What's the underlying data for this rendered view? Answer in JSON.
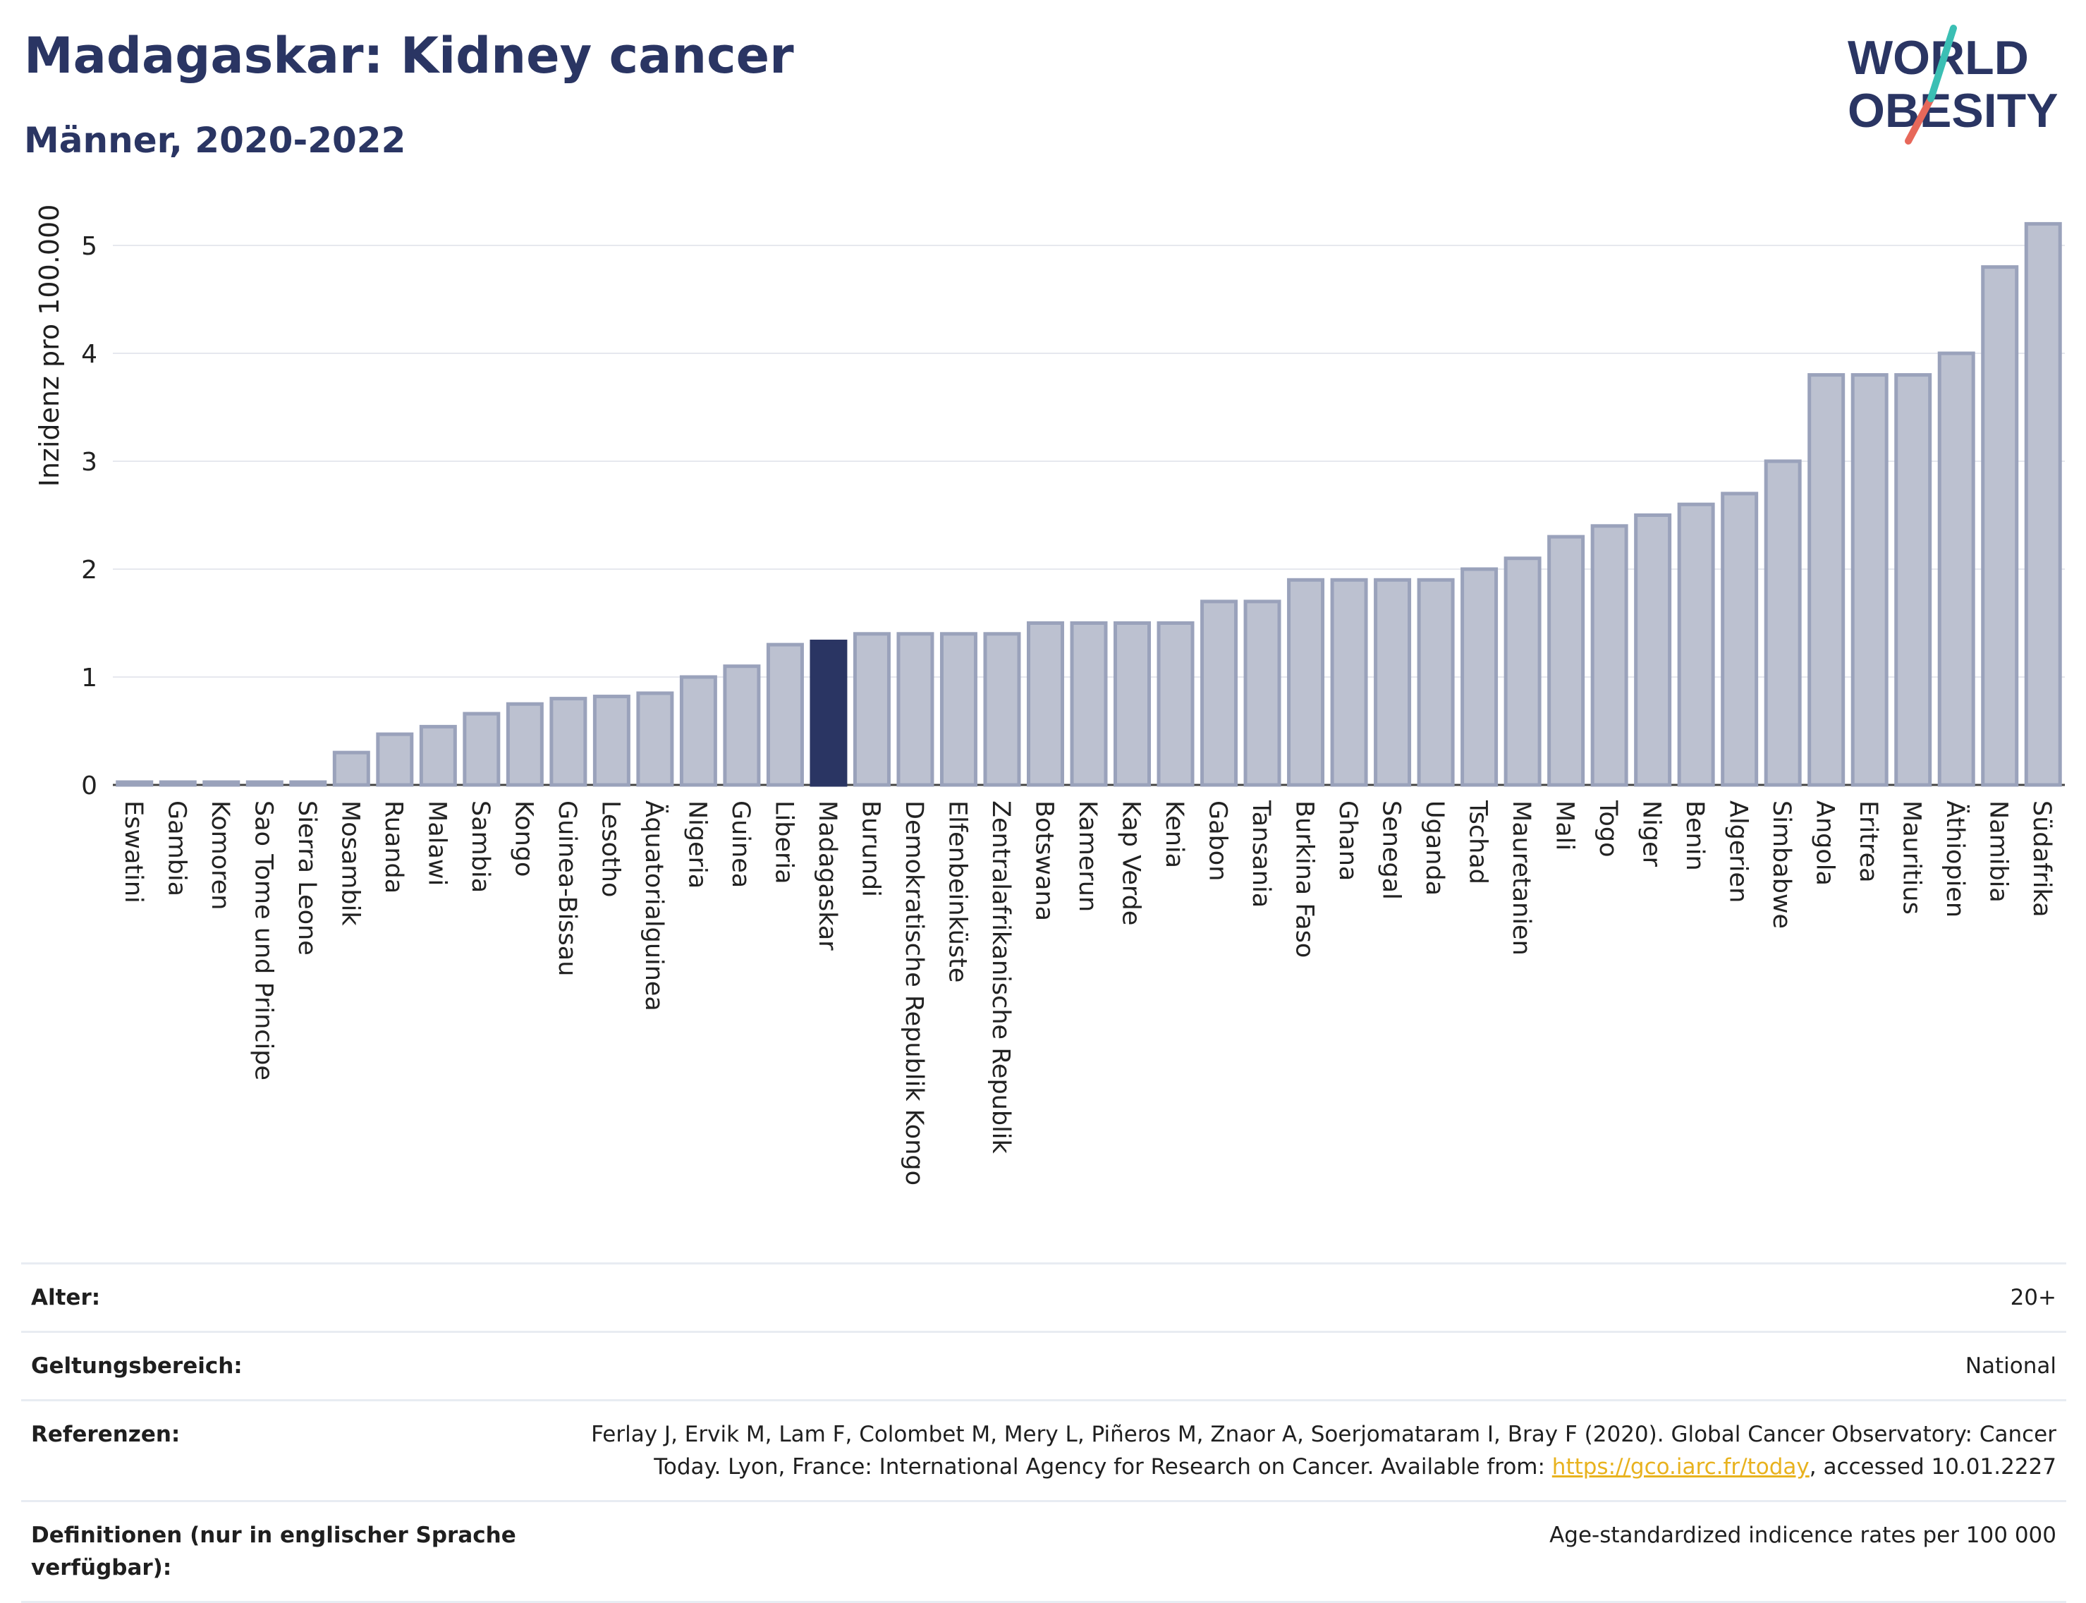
{
  "header": {
    "title": "Madagaskar: Kidney cancer",
    "subtitle": "Männer, 2020-2022"
  },
  "logo": {
    "line1": "WORLD",
    "line2": "OBESITY"
  },
  "chart_data": {
    "type": "bar",
    "ylabel": "Inzidenz pro 100.000",
    "ylim": [
      0,
      5.3
    ],
    "yticks": [
      0,
      1,
      2,
      3,
      4,
      5
    ],
    "highlight": "Madagaskar",
    "colors": {
      "bar": "#bcc1d0",
      "bar_edge": "#9aa2bb",
      "highlight": "#2a3563"
    },
    "categories": [
      "Eswatini",
      "Gambia",
      "Komoren",
      "Sao Tome und Principe",
      "Sierra Leone",
      "Mosambik",
      "Ruanda",
      "Malawi",
      "Sambia",
      "Kongo",
      "Guinea-Bissau",
      "Lesotho",
      "Äquatorialguinea",
      "Nigeria",
      "Guinea",
      "Liberia",
      "Madagaskar",
      "Burundi",
      "Demokratische Republik Kongo",
      "Elfenbeinküste",
      "Zentralafrikanische Republik",
      "Botswana",
      "Kamerun",
      "Kap Verde",
      "Kenia",
      "Gabon",
      "Tansania",
      "Burkina Faso",
      "Ghana",
      "Senegal",
      "Uganda",
      "Tschad",
      "Mauretanien",
      "Mali",
      "Togo",
      "Niger",
      "Benin",
      "Algerien",
      "Simbabwe",
      "Angola",
      "Eritrea",
      "Mauritius",
      "Äthiopien",
      "Namibia",
      "Südafrika"
    ],
    "values": [
      0.02,
      0.02,
      0.02,
      0.02,
      0.02,
      0.3,
      0.47,
      0.54,
      0.66,
      0.75,
      0.8,
      0.82,
      0.85,
      1.0,
      1.1,
      1.3,
      1.33,
      1.4,
      1.4,
      1.4,
      1.4,
      1.5,
      1.5,
      1.5,
      1.5,
      1.7,
      1.7,
      1.9,
      1.9,
      1.9,
      1.9,
      2.0,
      2.1,
      2.3,
      2.4,
      2.5,
      2.6,
      2.7,
      3.0,
      3.8,
      3.8,
      3.8,
      4.0,
      4.8,
      5.2
    ]
  },
  "meta": {
    "age_label": "Alter:",
    "age_value": "20+",
    "scope_label": "Geltungsbereich:",
    "scope_value": "National",
    "refs_label": "Referenzen:",
    "refs_text_1": "Ferlay J, Ervik M, Lam F, Colombet M, Mery L, Piñeros M, Znaor A, Soerjomataram I, Bray F (2020). Global Cancer Observatory: Cancer Today. Lyon, France: International Agency for Research on Cancer. Available from: ",
    "refs_link": "https://gco.iarc.fr/today",
    "refs_text_2": ", accessed 10.01.2227",
    "defs_label": "Definitionen (nur in englischer Sprache verfügbar):",
    "defs_value": "Age-standardized indicence rates per 100 000"
  }
}
